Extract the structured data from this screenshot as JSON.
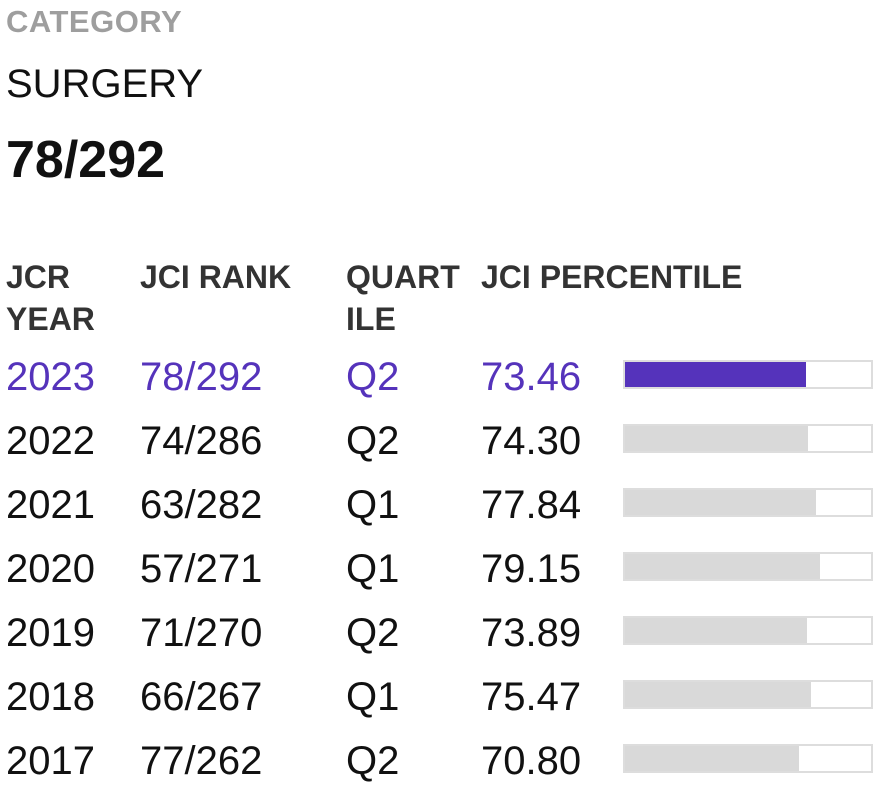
{
  "category": {
    "label": "CATEGORY",
    "name": "SURGERY",
    "rank": "78/292"
  },
  "table": {
    "headers": {
      "year": "JCR\nYEAR",
      "rank": "JCI RANK",
      "quartile": "QUART\nILE",
      "percentile": "JCI PERCENTILE"
    },
    "rows": [
      {
        "year": "2023",
        "rank": "78/292",
        "quartile": "Q2",
        "percentile": "73.46",
        "pct_value": 73.46
      },
      {
        "year": "2022",
        "rank": "74/286",
        "quartile": "Q2",
        "percentile": "74.30",
        "pct_value": 74.3
      },
      {
        "year": "2021",
        "rank": "63/282",
        "quartile": "Q1",
        "percentile": "77.84",
        "pct_value": 77.84
      },
      {
        "year": "2020",
        "rank": "57/271",
        "quartile": "Q1",
        "percentile": "79.15",
        "pct_value": 79.15
      },
      {
        "year": "2019",
        "rank": "71/270",
        "quartile": "Q2",
        "percentile": "73.89",
        "pct_value": 73.89
      },
      {
        "year": "2018",
        "rank": "66/267",
        "quartile": "Q1",
        "percentile": "75.47",
        "pct_value": 75.47
      },
      {
        "year": "2017",
        "rank": "77/262",
        "quartile": "Q2",
        "percentile": "70.80",
        "pct_value": 70.8
      }
    ]
  },
  "colors": {
    "accent": "#5533bb",
    "bar_inactive": "#d9d9d9",
    "label_gray": "#9e9e9e"
  }
}
